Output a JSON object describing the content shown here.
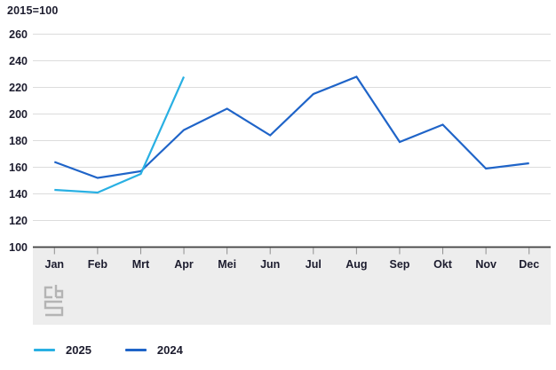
{
  "title": "2015=100",
  "legend": [
    {
      "label": "2025",
      "color": "#29b0e3"
    },
    {
      "label": "2024",
      "color": "#1f64c8"
    }
  ],
  "logo": {
    "name": "cbs-logo",
    "color": "#b4b4b4"
  },
  "colors": {
    "series_2025": "#29b0e3",
    "series_2024": "#1f64c8",
    "gridline": "#dcdcdc",
    "baseline": "#3f3f3f",
    "band": "#ededed",
    "tick": "#8f8f8f",
    "text": "#1c1c2e"
  },
  "chart_data": {
    "type": "line",
    "title": "2015=100",
    "categories": [
      "Jan",
      "Feb",
      "Mrt",
      "Apr",
      "Mei",
      "Jun",
      "Jul",
      "Aug",
      "Sep",
      "Okt",
      "Nov",
      "Dec"
    ],
    "series": [
      {
        "name": "2025",
        "color": "#29b0e3",
        "values": [
          143,
          141,
          155,
          228,
          null,
          null,
          null,
          null,
          null,
          null,
          null,
          null
        ]
      },
      {
        "name": "2024",
        "color": "#1f64c8",
        "values": [
          164,
          152,
          157,
          188,
          204,
          184,
          215,
          228,
          179,
          192,
          159,
          163
        ]
      }
    ],
    "xlabel": "",
    "ylabel": "",
    "ylim": [
      100,
      260
    ],
    "ytick_step": 20,
    "grid": true,
    "legend_position": "bottom"
  }
}
